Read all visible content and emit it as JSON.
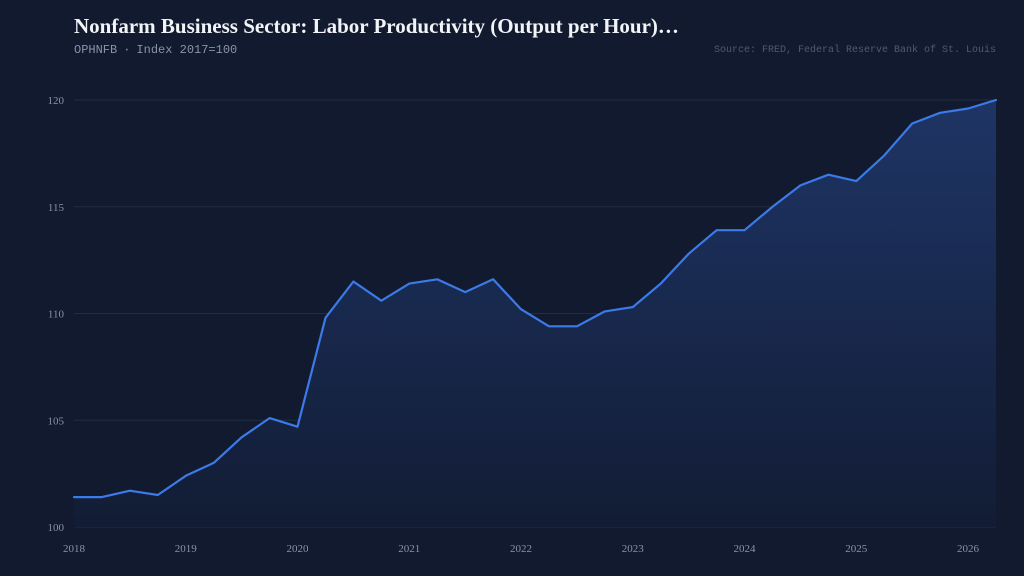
{
  "header": {
    "title": "Nonfarm Business Sector: Labor Productivity (Output per Hour)…",
    "series_id": "OPHNFB",
    "separator": "·",
    "units": "Index 2017=100",
    "source": "Source: FRED, Federal Reserve Bank of St. Louis"
  },
  "colors": {
    "background": "#111a2e",
    "line": "#3b7ae8",
    "area_top": "#1f3668",
    "area_bottom": "#121c34",
    "grid": "#222c42"
  },
  "chart_data": {
    "type": "area",
    "title": "Nonfarm Business Sector: Labor Productivity (Output per Hour)…",
    "xlabel": "",
    "ylabel": "",
    "ylim": [
      100,
      120
    ],
    "xlim": [
      "2018-01",
      "2026-04"
    ],
    "y_ticks": [
      "100",
      "105",
      "110",
      "115",
      "120"
    ],
    "x_ticks": [
      "2018",
      "2019",
      "2020",
      "2021",
      "2022",
      "2023",
      "2024",
      "2025",
      "2026"
    ],
    "grid": "horizontal",
    "series": [
      {
        "x": [
          "2018-Q1",
          "2018-Q2",
          "2018-Q3",
          "2018-Q4",
          "2019-Q1",
          "2019-Q2",
          "2019-Q3",
          "2019-Q4",
          "2020-Q1",
          "2020-Q2",
          "2020-Q3",
          "2020-Q4",
          "2021-Q1",
          "2021-Q2",
          "2021-Q3",
          "2021-Q4",
          "2022-Q1",
          "2022-Q2",
          "2022-Q3",
          "2022-Q4",
          "2023-Q1",
          "2023-Q2",
          "2023-Q3",
          "2023-Q4",
          "2024-Q1",
          "2024-Q2",
          "2024-Q3",
          "2024-Q4",
          "2025-Q1",
          "2025-Q2",
          "2025-Q3",
          "2025-Q4",
          "2026-Q1",
          "2026-Q2"
        ],
        "values": [
          101.4,
          101.4,
          101.7,
          101.5,
          102.4,
          103.0,
          104.2,
          105.1,
          104.7,
          109.8,
          111.5,
          110.6,
          111.4,
          111.6,
          111.0,
          111.6,
          110.2,
          109.4,
          109.4,
          110.1,
          110.3,
          111.4,
          112.8,
          113.9,
          113.9,
          115.0,
          116.0,
          116.5,
          116.2,
          117.4,
          118.9,
          119.4,
          119.6,
          120.0
        ]
      }
    ]
  }
}
